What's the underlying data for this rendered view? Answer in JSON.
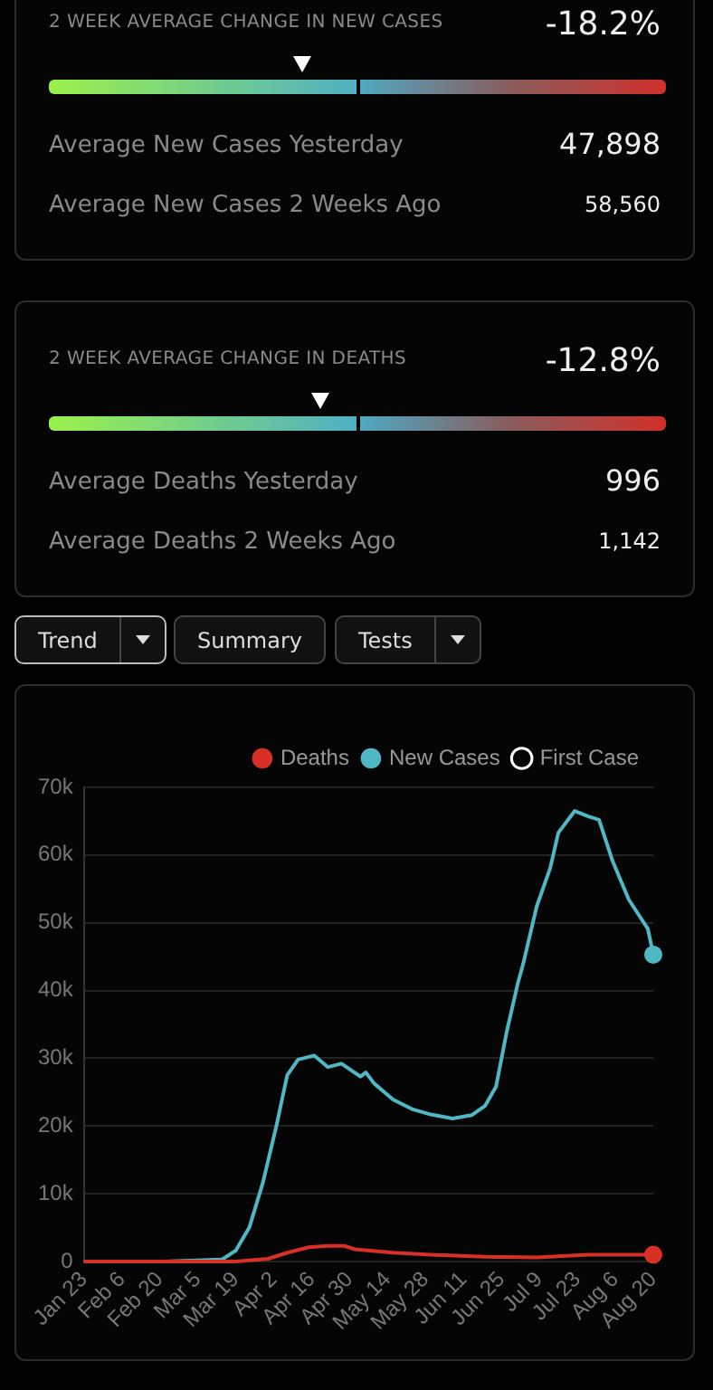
{
  "chart_data": [
    {
      "type": "other",
      "title": "2 WEEK AVERAGE CHANGE IN NEW CASES",
      "annotations": [
        "-18.2%",
        "Average New Cases Yesterday",
        "47,898",
        "Average New Cases 2 Weeks Ago",
        "58,560"
      ]
    },
    {
      "type": "other",
      "title": "2 WEEK AVERAGE CHANGE IN DEATHS",
      "annotations": [
        "-12.8%",
        "Average Deaths Yesterday",
        "996",
        "Average Deaths 2 Weeks Ago",
        "1,142"
      ]
    },
    {
      "type": "line",
      "annotations": [
        "Trend",
        "Summary",
        "Tests"
      ],
      "xlim": [
        "--01-23",
        "--08-20"
      ],
      "xticks": [
        {
          "value": "--01-23",
          "label": "Jan 23"
        },
        {
          "value": "--02-06",
          "label": "Feb 6"
        },
        {
          "value": "--02-20",
          "label": "Feb 20"
        },
        {
          "value": "--03-05",
          "label": "Mar 5"
        },
        {
          "value": "--03-19",
          "label": "Mar 19"
        },
        {
          "value": "--04-02",
          "label": "Apr 2"
        },
        {
          "value": "--04-16",
          "label": "Apr 16"
        },
        {
          "value": "--04-30",
          "label": "Apr 30"
        },
        {
          "value": "--05-14",
          "label": "May 14"
        },
        {
          "value": "--05-28",
          "label": "May 28"
        },
        {
          "value": "--06-11",
          "label": "Jun 11"
        },
        {
          "value": "--06-25",
          "label": "Jun 25"
        },
        {
          "value": "--07-09",
          "label": "Jul 9"
        },
        {
          "value": "--07-23",
          "label": "Jul 23"
        },
        {
          "value": "--08-06",
          "label": "Aug 6"
        },
        {
          "value": "--08-20",
          "label": "Aug 20"
        }
      ],
      "ylim": [
        0,
        70000
      ],
      "yticks": [
        {
          "value": 0,
          "label": "0"
        },
        {
          "value": 10000,
          "label": "10k"
        },
        {
          "value": 20000,
          "label": "20k"
        },
        {
          "value": 30000,
          "label": "30k"
        },
        {
          "value": 40000,
          "label": "40k"
        },
        {
          "value": 50000,
          "label": "50k"
        },
        {
          "value": 60000,
          "label": "60k"
        },
        {
          "value": 70000,
          "label": "70k"
        }
      ],
      "grid": "y",
      "legend": "top right",
      "series": [
        {
          "name": "Deaths",
          "color": "#d93025",
          "x": [
            "--01-23",
            "--03-19",
            "--03-31",
            "--04-07",
            "--04-15",
            "--04-22",
            "--04-28",
            "--05-02",
            "--05-16",
            "--05-30",
            "--06-19",
            "--07-08",
            "--07-27",
            "--08-20"
          ],
          "values": [
            0,
            0,
            400,
            1300,
            2100,
            2300,
            2300,
            1800,
            1300,
            1000,
            700,
            600,
            1000,
            1000
          ]
        },
        {
          "name": "New Cases",
          "color": "#4fb8c4",
          "x": [
            "--01-23",
            "--02-22",
            "--03-14",
            "--03-19",
            "--03-24",
            "--03-29",
            "--04-03",
            "--04-07",
            "--04-11",
            "--04-17",
            "--04-22",
            "--04-27",
            "--05-04",
            "--05-06",
            "--05-09",
            "--05-16",
            "--05-23",
            "--05-30",
            "--06-07",
            "--06-14",
            "--06-19",
            "--06-23",
            "--06-27",
            "--07-01",
            "--07-03",
            "--07-08",
            "--07-13",
            "--07-16",
            "--07-22",
            "--07-27",
            "--07-31",
            "--08-05",
            "--08-11",
            "--08-18",
            "--08-20"
          ],
          "values": [
            0,
            0,
            300,
            1600,
            5000,
            11600,
            20000,
            27500,
            29800,
            30400,
            28700,
            29200,
            27300,
            27900,
            26300,
            23900,
            22500,
            21700,
            21100,
            21600,
            23000,
            25800,
            34000,
            41000,
            43900,
            52400,
            58100,
            63300,
            66500,
            65700,
            65200,
            59100,
            53400,
            49100,
            45300
          ]
        },
        {
          "name": "First Case",
          "type": "scatter",
          "color": "#ffffff"
        }
      ]
    }
  ]
}
